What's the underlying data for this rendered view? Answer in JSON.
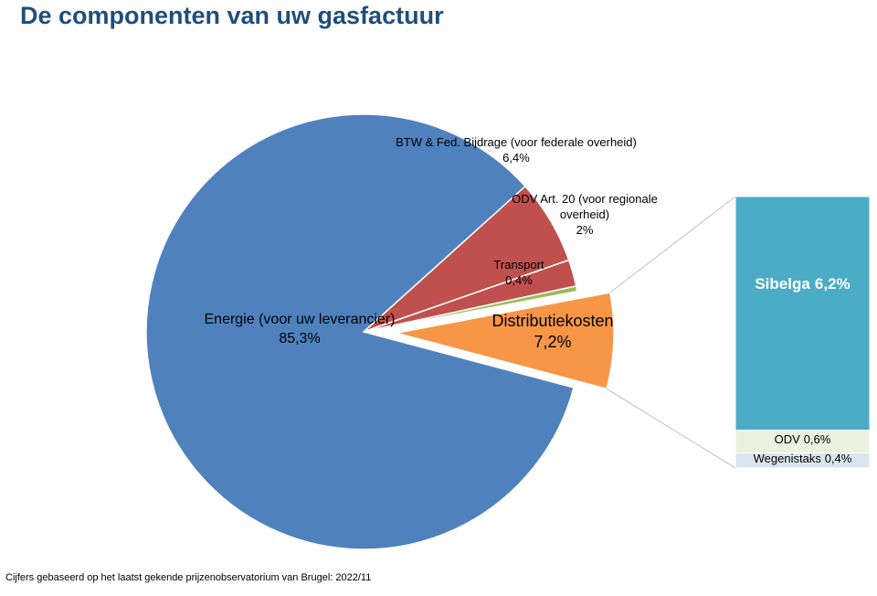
{
  "chart_data": {
    "type": "pie-of-bar",
    "title": "De componenten van uw gasfactuur",
    "footnote": "Cijfers gebaseerd op het laatst gekende prijzenobservatorium van Brugel:  2022/11",
    "categories": [
      "BTW & Fed. Bijdrage (voor federale overheid)",
      "ODV Art. 20 (voor regionale overheid)",
      "Transport",
      "Distributiekosten",
      "Energie (voor uw leverancier)"
    ],
    "values": [
      6.4,
      2,
      0.4,
      7.2,
      85.3
    ],
    "value_labels": [
      "6,4%",
      "2%",
      "0,4%",
      "7,2%",
      "85,3%"
    ],
    "colors": [
      "#c0504d",
      "#c0504d",
      "#9bbb59",
      "#f79646",
      "#4f81bd"
    ],
    "breakdown": {
      "of": "Distributiekosten",
      "categories": [
        "Sibelga",
        "ODV",
        "Wegenistaks"
      ],
      "values": [
        6.2,
        0.6,
        0.4
      ],
      "value_labels": [
        "6,2%",
        "0,6%",
        "0,4%"
      ],
      "colors": [
        "#4bacc6",
        "#ebf1de",
        "#dbe5f1"
      ]
    }
  }
}
